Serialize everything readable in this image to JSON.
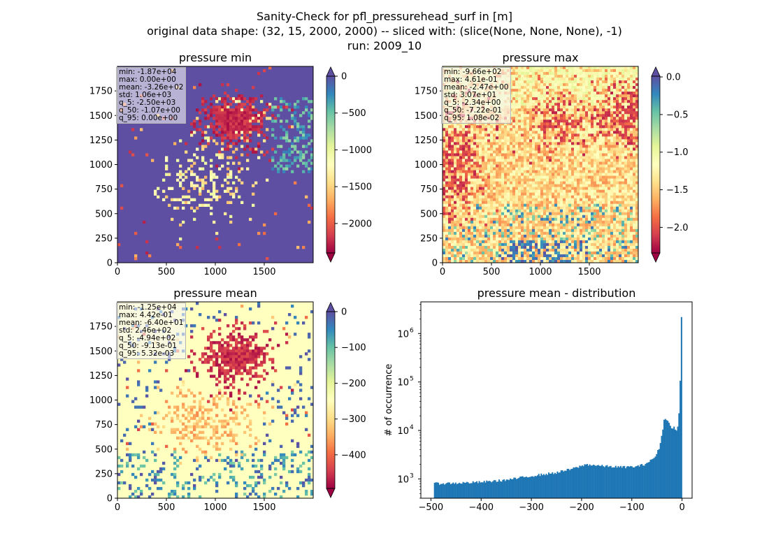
{
  "figure": {
    "title_lines": [
      "Sanity-Check for pfl_pressurehead_surf in [m]",
      "original data shape: (32, 15, 2000, 2000) -- sliced with: (slice(None, None, None), -1)",
      "run: 2009_10"
    ]
  },
  "chart_data": [
    {
      "type": "heatmap",
      "title": "pressure min",
      "xlim": [
        0,
        2000
      ],
      "ylim": [
        0,
        2000
      ],
      "x_ticks": [
        0,
        500,
        1000,
        1500
      ],
      "y_ticks": [
        0,
        250,
        500,
        750,
        1000,
        1250,
        1500,
        1750
      ],
      "colormap": "Spectral",
      "colorbar": {
        "vmin": -2400,
        "vmax": 0,
        "ticks": [
          0,
          -500,
          -1000,
          -1500,
          -2000
        ],
        "tick_labels": [
          "0",
          "−500",
          "−1000",
          "−1500",
          "−2000"
        ],
        "extend": "both"
      },
      "background_value": 0,
      "stats": [
        "min: -1.87e+04",
        "max: 0.00e+00",
        "mean: -3.26e+02",
        "std: 1.06e+03",
        "q_5: -2.50e+03",
        "q_50: -1.07e+00",
        "q_95: 0.00e+00"
      ]
    },
    {
      "type": "heatmap",
      "title": "pressure max",
      "xlim": [
        0,
        2000
      ],
      "ylim": [
        0,
        2000
      ],
      "x_ticks": [
        0,
        500,
        1000,
        1500
      ],
      "y_ticks": [
        0,
        250,
        500,
        750,
        1000,
        1250,
        1500,
        1750
      ],
      "colormap": "Spectral",
      "colorbar": {
        "vmin": -2.34,
        "vmax": 0.01,
        "ticks": [
          0.0,
          -0.5,
          -1.0,
          -1.5,
          -2.0
        ],
        "tick_labels": [
          "0.0",
          "−0.5",
          "−1.0",
          "−1.5",
          "−2.0"
        ],
        "extend": "both"
      },
      "stats": [
        "min: -9.66e+02",
        "max: 4.61e-01",
        "mean: -2.47e+00",
        "std: 3.07e+01",
        "q_5: -2.34e+00",
        "q_50: -7.22e-01",
        "q_95: 1.08e-02"
      ]
    },
    {
      "type": "heatmap",
      "title": "pressure mean",
      "xlim": [
        0,
        2000
      ],
      "ylim": [
        0,
        2000
      ],
      "x_ticks": [
        0,
        500,
        1000,
        1500
      ],
      "y_ticks": [
        0,
        250,
        500,
        750,
        1000,
        1250,
        1500,
        1750
      ],
      "colormap": "Spectral",
      "colorbar": {
        "vmin": -494,
        "vmax": 0,
        "ticks": [
          0,
          -100,
          -200,
          -300,
          -400
        ],
        "tick_labels": [
          "0",
          "−100",
          "−200",
          "−300",
          "−400"
        ],
        "extend": "both"
      },
      "background_value": 0,
      "stats": [
        "min: -1.25e+04",
        "max: 4.42e-01",
        "mean: -6.40e+01",
        "std: 2.46e+02",
        "q_5: -4.94e+02",
        "q_50: -9.13e-01",
        "q_95: 5.32e-03"
      ]
    },
    {
      "type": "bar",
      "title": "pressure mean - distribution",
      "ylabel": "# of occurrence",
      "xlabel": "",
      "y_scale": "log",
      "xlim": [
        -520,
        20
      ],
      "ylim": [
        400,
        4500000
      ],
      "x_ticks": [
        -500,
        -400,
        -300,
        -200,
        -100,
        0
      ],
      "x_tick_labels": [
        "−500",
        "−400",
        "−300",
        "−200",
        "−100",
        "0"
      ],
      "y_ticks": [
        1000,
        10000,
        100000,
        1000000
      ],
      "y_tick_labels": [
        [
          "10",
          "3"
        ],
        [
          "10",
          "4"
        ],
        [
          "10",
          "5"
        ],
        [
          "10",
          "6"
        ]
      ],
      "bin_range": [
        -494,
        0.005
      ],
      "bins": 200,
      "counts_shape": [
        [
          -494,
          800
        ],
        [
          -450,
          820
        ],
        [
          -400,
          860
        ],
        [
          -350,
          950
        ],
        [
          -300,
          1150
        ],
        [
          -250,
          1350
        ],
        [
          -220,
          1600
        ],
        [
          -190,
          2000
        ],
        [
          -160,
          1850
        ],
        [
          -120,
          1750
        ],
        [
          -90,
          1800
        ],
        [
          -75,
          2000
        ],
        [
          -62,
          2400
        ],
        [
          -52,
          3000
        ],
        [
          -45,
          4500
        ],
        [
          -40,
          8500
        ],
        [
          -35,
          18000
        ],
        [
          -30,
          16000
        ],
        [
          -25,
          15000
        ],
        [
          -20,
          10000
        ],
        [
          -15,
          12000
        ],
        [
          -10,
          9000
        ],
        [
          -6,
          25000
        ],
        [
          -3,
          160000
        ],
        [
          -1,
          3000000
        ],
        [
          0,
          3000000
        ]
      ],
      "bar_color": "#1f77b4"
    }
  ]
}
